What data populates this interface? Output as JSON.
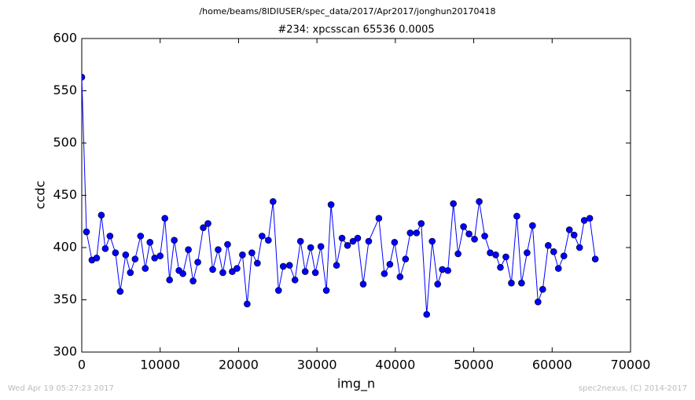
{
  "chart_data": {
    "type": "line",
    "suptitle": "/home/beams/8IDIUSER/spec_data/2017/Apr2017/jonghun20170418",
    "title": "#234: xpcsscan 65536 0.0005",
    "xlabel": "img_n",
    "ylabel": "ccdc",
    "footer_left": "Wed Apr 19 05:27:23 2017",
    "footer_right": "spec2nexus, (C) 2014-2017",
    "xlim": [
      0,
      70000
    ],
    "xticks": [
      0,
      10000,
      20000,
      30000,
      40000,
      50000,
      60000,
      70000
    ],
    "ylim": [
      300,
      600
    ],
    "yticks": [
      300,
      350,
      400,
      450,
      500,
      550,
      600
    ],
    "series": [
      {
        "color": "#0000ff",
        "x": [
          0,
          600,
          1300,
          1900,
          2500,
          3000,
          3600,
          4300,
          4900,
          5600,
          6200,
          6800,
          7500,
          8100,
          8700,
          9300,
          10000,
          10600,
          11200,
          11800,
          12400,
          12900,
          13600,
          14200,
          14800,
          15500,
          16100,
          16700,
          17400,
          18000,
          18600,
          19200,
          19800,
          20500,
          21100,
          21700,
          22400,
          23000,
          23800,
          24400,
          25100,
          25700,
          26500,
          27200,
          27900,
          28500,
          29200,
          29800,
          30500,
          31200,
          31800,
          32500,
          33200,
          33900,
          34600,
          35200,
          35900,
          36600,
          37900,
          38600,
          39300,
          39900,
          40600,
          41300,
          41900,
          42700,
          43300,
          44000,
          44700,
          45400,
          46000,
          46700,
          47400,
          48000,
          48700,
          49400,
          50100,
          50700,
          51400,
          52100,
          52800,
          53400,
          54100,
          54800,
          55500,
          56100,
          56800,
          57500,
          58200,
          58800,
          59500,
          60200,
          60800,
          61500,
          62200,
          62800,
          63500,
          64100,
          64800,
          65500
        ],
        "values": [
          563,
          415,
          388,
          390,
          431,
          399,
          411,
          395,
          358,
          393,
          376,
          389,
          411,
          380,
          405,
          390,
          392,
          428,
          369,
          407,
          378,
          375,
          398,
          368,
          386,
          419,
          423,
          379,
          398,
          376,
          403,
          377,
          380,
          393,
          346,
          395,
          385,
          411,
          407,
          444,
          359,
          382,
          383,
          369,
          406,
          377,
          400,
          376,
          401,
          359,
          441,
          383,
          409,
          402,
          406,
          409,
          365,
          406,
          428,
          375,
          384,
          405,
          372,
          389,
          414,
          414,
          423,
          336,
          406,
          365,
          379,
          378,
          442,
          394,
          420,
          413,
          408,
          444,
          411,
          395,
          393,
          381,
          391,
          366,
          430,
          366,
          395,
          421,
          348,
          360,
          402,
          396,
          380,
          392,
          417,
          412,
          400,
          426,
          428,
          389
        ]
      }
    ]
  }
}
